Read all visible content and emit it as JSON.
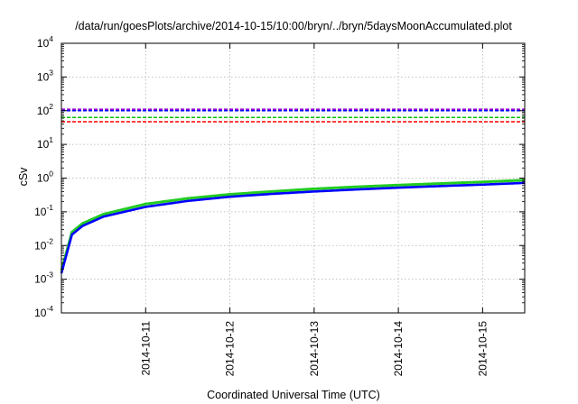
{
  "chart_data": {
    "type": "line",
    "title": "/data/run/goesPlots/archive/2014-10-15/10:00/bryn/../bryn/5daysMoonAccumulated.plot",
    "xlabel": "Coordinated Universal Time (UTC)",
    "ylabel": "cSv",
    "y_scale": "log",
    "ylim": [
      0.0001,
      10000
    ],
    "xlim": [
      "2014-10-10T00:00",
      "2014-10-15T12:00"
    ],
    "y_ticks": [
      {
        "base": "10",
        "exp": "-4",
        "value": 0.0001
      },
      {
        "base": "10",
        "exp": "-3",
        "value": 0.001
      },
      {
        "base": "10",
        "exp": "-2",
        "value": 0.01
      },
      {
        "base": "10",
        "exp": "-1",
        "value": 0.1
      },
      {
        "base": "10",
        "exp": "0",
        "value": 1
      },
      {
        "base": "10",
        "exp": "1",
        "value": 10
      },
      {
        "base": "10",
        "exp": "2",
        "value": 100
      },
      {
        "base": "10",
        "exp": "3",
        "value": 1000
      },
      {
        "base": "10",
        "exp": "4",
        "value": 10000
      }
    ],
    "x_ticks": [
      "2014-10-11",
      "2014-10-12",
      "2014-10-13",
      "2014-10-14",
      "2014-10-15"
    ],
    "grid": true,
    "threshold_lines": [
      {
        "value": 110,
        "color": "#9400d3",
        "style": "dashed"
      },
      {
        "value": 100,
        "color": "#0000ff",
        "style": "dashed"
      },
      {
        "value": 63,
        "color": "#00c000",
        "style": "dashed"
      },
      {
        "value": 47,
        "color": "#ff0000",
        "style": "dashed"
      }
    ],
    "series": [
      {
        "color": "#22cc22",
        "x": [
          "2014-10-10T00:00",
          "2014-10-10T03:00",
          "2014-10-10T06:00",
          "2014-10-10T12:00",
          "2014-10-11T00:00",
          "2014-10-11T12:00",
          "2014-10-12T00:00",
          "2014-10-12T12:00",
          "2014-10-13T00:00",
          "2014-10-13T12:00",
          "2014-10-14T00:00",
          "2014-10-14T12:00",
          "2014-10-15T00:00",
          "2014-10-15T12:00"
        ],
        "y": [
          0.0018,
          0.025,
          0.045,
          0.085,
          0.17,
          0.25,
          0.33,
          0.4,
          0.48,
          0.55,
          0.62,
          0.69,
          0.77,
          0.87
        ]
      },
      {
        "color": "#0000ff",
        "x": [
          "2014-10-10T00:00",
          "2014-10-10T03:00",
          "2014-10-10T06:00",
          "2014-10-10T12:00",
          "2014-10-11T00:00",
          "2014-10-11T12:00",
          "2014-10-12T00:00",
          "2014-10-12T12:00",
          "2014-10-13T00:00",
          "2014-10-13T12:00",
          "2014-10-14T00:00",
          "2014-10-14T12:00",
          "2014-10-15T00:00",
          "2014-10-15T12:00"
        ],
        "y": [
          0.0015,
          0.021,
          0.038,
          0.072,
          0.14,
          0.21,
          0.28,
          0.34,
          0.4,
          0.46,
          0.52,
          0.58,
          0.64,
          0.72
        ]
      }
    ]
  }
}
